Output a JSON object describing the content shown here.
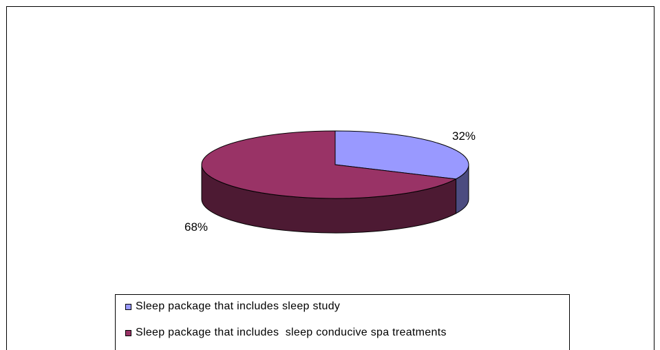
{
  "chart_data": {
    "type": "pie",
    "title": "",
    "slices": [
      {
        "label": "Sleep package that includes sleep study",
        "value": 32,
        "value_label": "32%",
        "color": "#9999ff",
        "side_color": "#4c4c80"
      },
      {
        "label": "Sleep package that includes  sleep conducive spa treatments",
        "value": 68,
        "value_label": "68%",
        "color": "#993366",
        "side_color": "#4d1a33"
      }
    ],
    "legend_position": "bottom",
    "style": "3d"
  }
}
